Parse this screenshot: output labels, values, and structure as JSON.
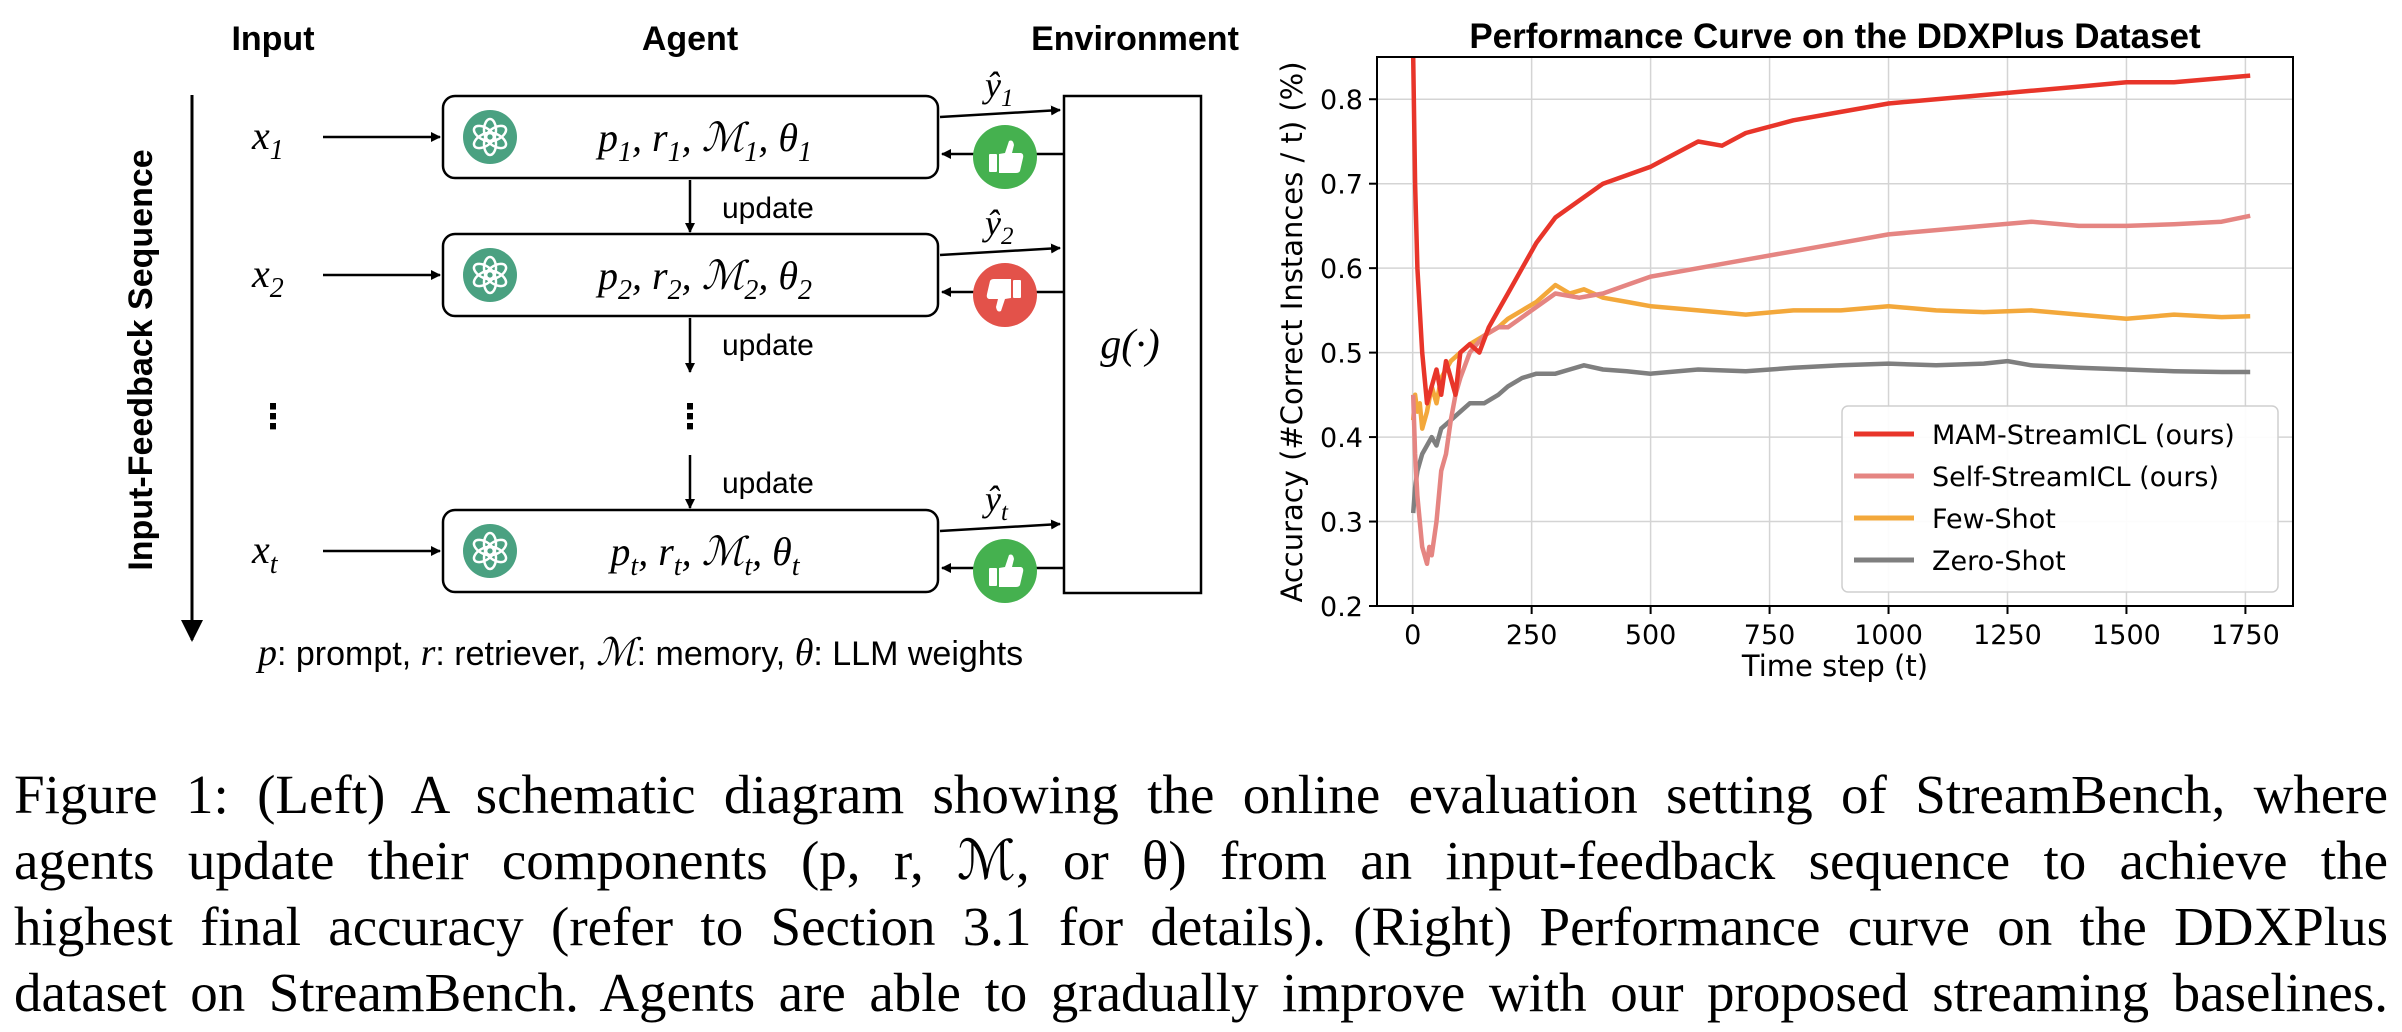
{
  "diagram": {
    "headers": {
      "input": "Input",
      "agent": "Agent",
      "environment": "Environment"
    },
    "sequence_label": "Input-Feedback Sequence",
    "rows": [
      {
        "x_base": "x",
        "x_sub": "1",
        "params": [
          "p",
          "r",
          "ℳ",
          "θ"
        ],
        "sub": "1",
        "output_sub": "1",
        "feedback": "thumbs-up"
      },
      {
        "x_base": "x",
        "x_sub": "2",
        "params": [
          "p",
          "r",
          "ℳ",
          "θ"
        ],
        "sub": "2",
        "output_sub": "2",
        "feedback": "thumbs-down"
      },
      {
        "x_base": "x",
        "x_sub": "t",
        "params": [
          "p",
          "r",
          "ℳ",
          "θ"
        ],
        "sub": "t",
        "output_sub": "t",
        "feedback": "thumbs-up"
      }
    ],
    "update_label": "update",
    "ellipsis": "⋮",
    "environment_fn": "g(·)",
    "output_symbol": "ŷ",
    "legend_parts": [
      {
        "sym": "p",
        "text": ": prompt, "
      },
      {
        "sym": "r",
        "text": ": retriever, "
      },
      {
        "sym": "ℳ",
        "text": ": memory, "
      },
      {
        "sym": "θ",
        "text": ": LLM weights"
      }
    ],
    "colors": {
      "llm_icon": "#4aa181",
      "thumbs_up": "#45b14f",
      "thumbs_down": "#e3524a"
    }
  },
  "chart_data": {
    "type": "line",
    "title": "Performance Curve on the DDXPlus Dataset",
    "xlabel": "Time step (t)",
    "ylabel": "Accuracy (#Correct Instances / t) (%)",
    "xlim": [
      -75,
      1850
    ],
    "ylim": [
      0.2,
      0.85
    ],
    "xticks": [
      0,
      250,
      500,
      750,
      1000,
      1250,
      1500,
      1750
    ],
    "yticks": [
      0.2,
      0.3,
      0.4,
      0.5,
      0.6,
      0.7,
      0.8
    ],
    "grid": true,
    "legend_position": "lower-right",
    "series": [
      {
        "name": "MAM-StreamICL (ours)",
        "color": "#e8352a",
        "x": [
          1,
          5,
          10,
          15,
          20,
          25,
          30,
          40,
          50,
          60,
          70,
          80,
          90,
          100,
          120,
          140,
          160,
          180,
          200,
          230,
          260,
          300,
          350,
          400,
          450,
          500,
          550,
          600,
          650,
          700,
          800,
          900,
          1000,
          1100,
          1200,
          1300,
          1400,
          1500,
          1600,
          1700,
          1760
        ],
        "y": [
          0.85,
          0.7,
          0.6,
          0.55,
          0.5,
          0.47,
          0.44,
          0.46,
          0.48,
          0.45,
          0.49,
          0.47,
          0.45,
          0.5,
          0.51,
          0.5,
          0.53,
          0.55,
          0.57,
          0.6,
          0.63,
          0.66,
          0.68,
          0.7,
          0.71,
          0.72,
          0.735,
          0.75,
          0.745,
          0.76,
          0.775,
          0.785,
          0.795,
          0.8,
          0.805,
          0.81,
          0.815,
          0.82,
          0.82,
          0.825,
          0.828
        ]
      },
      {
        "name": "Self-StreamICL (ours)",
        "color": "#e58582",
        "x": [
          1,
          5,
          10,
          15,
          20,
          25,
          30,
          35,
          40,
          50,
          60,
          70,
          80,
          90,
          100,
          120,
          150,
          180,
          200,
          250,
          300,
          350,
          400,
          450,
          500,
          600,
          700,
          800,
          900,
          1000,
          1100,
          1200,
          1300,
          1400,
          1500,
          1600,
          1700,
          1760
        ],
        "y": [
          0.45,
          0.38,
          0.33,
          0.3,
          0.27,
          0.26,
          0.25,
          0.27,
          0.26,
          0.3,
          0.36,
          0.38,
          0.42,
          0.45,
          0.47,
          0.5,
          0.52,
          0.53,
          0.53,
          0.55,
          0.57,
          0.565,
          0.57,
          0.58,
          0.59,
          0.6,
          0.61,
          0.62,
          0.63,
          0.64,
          0.645,
          0.65,
          0.655,
          0.65,
          0.65,
          0.652,
          0.655,
          0.662
        ]
      },
      {
        "name": "Few-Shot",
        "color": "#f3a83b",
        "x": [
          1,
          5,
          10,
          15,
          20,
          30,
          40,
          50,
          60,
          80,
          100,
          120,
          150,
          180,
          200,
          230,
          260,
          300,
          330,
          360,
          400,
          450,
          500,
          600,
          700,
          800,
          900,
          1000,
          1100,
          1200,
          1300,
          1400,
          1500,
          1600,
          1700,
          1760
        ],
        "y": [
          0.42,
          0.45,
          0.43,
          0.44,
          0.41,
          0.43,
          0.46,
          0.44,
          0.47,
          0.49,
          0.5,
          0.51,
          0.52,
          0.53,
          0.54,
          0.55,
          0.56,
          0.58,
          0.57,
          0.575,
          0.565,
          0.56,
          0.555,
          0.55,
          0.545,
          0.55,
          0.55,
          0.555,
          0.55,
          0.548,
          0.55,
          0.545,
          0.54,
          0.545,
          0.542,
          0.543
        ]
      },
      {
        "name": "Zero-Shot",
        "color": "#7f7f7f",
        "x": [
          1,
          5,
          10,
          15,
          20,
          30,
          40,
          50,
          60,
          80,
          100,
          120,
          150,
          180,
          200,
          230,
          260,
          300,
          330,
          360,
          400,
          450,
          500,
          600,
          700,
          800,
          900,
          1000,
          1100,
          1200,
          1250,
          1300,
          1400,
          1500,
          1600,
          1700,
          1760
        ],
        "y": [
          0.31,
          0.34,
          0.36,
          0.37,
          0.38,
          0.39,
          0.4,
          0.39,
          0.41,
          0.42,
          0.43,
          0.44,
          0.44,
          0.45,
          0.46,
          0.47,
          0.475,
          0.475,
          0.48,
          0.485,
          0.48,
          0.478,
          0.475,
          0.48,
          0.478,
          0.482,
          0.485,
          0.487,
          0.485,
          0.487,
          0.49,
          0.485,
          0.482,
          0.48,
          0.478,
          0.477,
          0.477
        ]
      }
    ]
  },
  "caption": {
    "lines": [
      "Figure 1: (Left) A schematic diagram showing the online evaluation setting of StreamBench, where",
      "agents update their components (p, r, ℳ, or θ) from an input-feedback sequence to achieve the",
      "highest final accuracy (refer to Section 3.1 for details). (Right) Performance curve on the DDXPlus",
      "dataset on StreamBench. Agents are able to gradually improve with our proposed streaming baselines."
    ]
  }
}
